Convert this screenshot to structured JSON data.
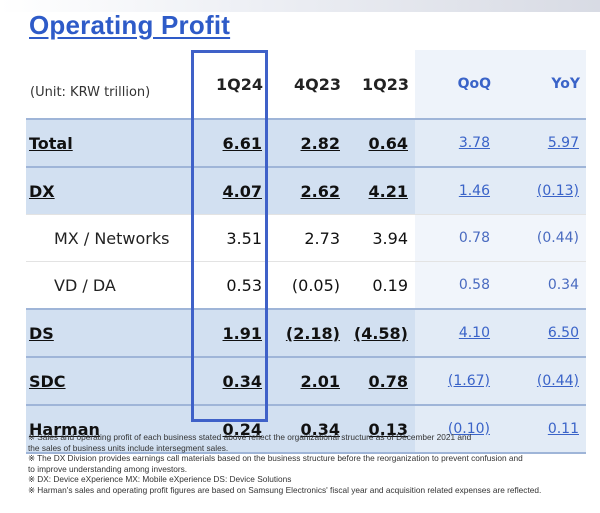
{
  "title": "Operating Profit",
  "unit_label": "(Unit: KRW trillion)",
  "columns": [
    "1Q24",
    "4Q23",
    "1Q23",
    "QoQ",
    "YoY"
  ],
  "rows": [
    {
      "label": "Total",
      "values": [
        "6.61",
        "2.82",
        "0.64",
        "3.78",
        "5.97"
      ]
    },
    {
      "label": "DX",
      "values": [
        "4.07",
        "2.62",
        "4.21",
        "1.46",
        "(0.13)"
      ]
    },
    {
      "label": "MX / Networks",
      "values": [
        "3.51",
        "2.73",
        "3.94",
        "0.78",
        "(0.44)"
      ]
    },
    {
      "label": "VD / DA",
      "values": [
        "0.53",
        "(0.05)",
        "0.19",
        "0.58",
        "0.34"
      ]
    },
    {
      "label": "DS",
      "values": [
        "1.91",
        "(2.18)",
        "(4.58)",
        "4.10",
        "6.50"
      ]
    },
    {
      "label": "SDC",
      "values": [
        "0.34",
        "2.01",
        "0.78",
        "(1.67)",
        "(0.44)"
      ]
    },
    {
      "label": "Harman",
      "values": [
        "0.24",
        "0.34",
        "0.13",
        "(0.10)",
        "0.11"
      ]
    }
  ],
  "notes": [
    "※ Sales and operating profit of each business stated above reflect the organizational structure  as of December 2021 and",
    "    the sales of business units include intersegment sales.",
    "※ The DX Division provides earnings call materials based on the business structure before the reorganization to prevent confusion and",
    "    to improve understanding among investors.",
    "※ DX: Device eXperience MX: Mobile eXperience DS: Device Solutions",
    "※ Harman's sales and operating profit figures are based on Samsung Electronics' fiscal year and acquisition related expenses  are reflected."
  ]
}
